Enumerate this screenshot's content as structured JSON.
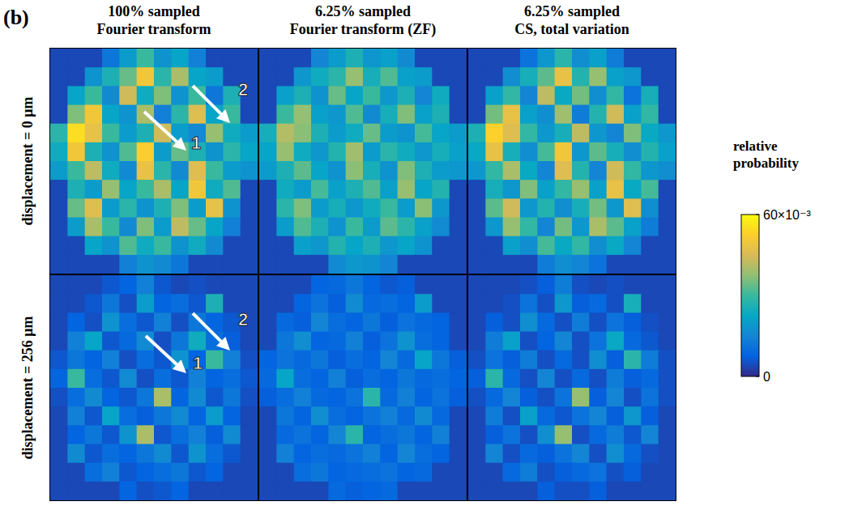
{
  "chart_data": {
    "type": "heatmap",
    "panel_label": "(b)",
    "tick_labels": false,
    "columns": [
      {
        "title": [
          "100% sampled",
          "Fourier transform"
        ]
      },
      {
        "title": [
          "6.25% sampled",
          "Fourier transform (ZF)"
        ]
      },
      {
        "title": [
          "6.25% sampled",
          "CS, total variation"
        ]
      }
    ],
    "rows": [
      {
        "label": "displacement = 0 μm"
      },
      {
        "label": "displacement = 256 μm"
      }
    ],
    "annotations": [
      {
        "text": "1",
        "row": 0,
        "column": 0
      },
      {
        "text": "2",
        "row": 0,
        "column": 0
      },
      {
        "text": "1",
        "row": 1,
        "column": 0
      },
      {
        "text": "2",
        "row": 1,
        "column": 0
      }
    ],
    "colorbar": {
      "label": "relative probability",
      "range": [
        0,
        0.06
      ],
      "ticks": [
        0,
        {
          "value": 0.06,
          "label": "60×10⁻³"
        }
      ]
    },
    "cells": [
      [
        [
          [
            0.004,
            0.004,
            0.004,
            0.012,
            0.02,
            0.03,
            0.018,
            0.022,
            0.014,
            0.004,
            0.004,
            0.004
          ],
          [
            0.004,
            0.004,
            0.018,
            0.026,
            0.034,
            0.05,
            0.028,
            0.04,
            0.022,
            0.02,
            0.004,
            0.004
          ],
          [
            0.004,
            0.022,
            0.03,
            0.016,
            0.044,
            0.024,
            0.036,
            0.018,
            0.03,
            0.012,
            0.026,
            0.004
          ],
          [
            0.004,
            0.036,
            0.05,
            0.022,
            0.018,
            0.04,
            0.014,
            0.028,
            0.046,
            0.022,
            0.03,
            0.004
          ],
          [
            0.028,
            0.055,
            0.048,
            0.03,
            0.02,
            0.026,
            0.044,
            0.02,
            0.016,
            0.038,
            0.024,
            0.02
          ],
          [
            0.024,
            0.05,
            0.026,
            0.018,
            0.032,
            0.052,
            0.02,
            0.034,
            0.026,
            0.018,
            0.028,
            0.022
          ],
          [
            0.02,
            0.03,
            0.042,
            0.024,
            0.016,
            0.048,
            0.028,
            0.016,
            0.046,
            0.03,
            0.02,
            0.018
          ],
          [
            0.004,
            0.026,
            0.02,
            0.038,
            0.022,
            0.03,
            0.04,
            0.022,
            0.05,
            0.024,
            0.032,
            0.004
          ],
          [
            0.004,
            0.034,
            0.046,
            0.02,
            0.028,
            0.018,
            0.026,
            0.036,
            0.02,
            0.048,
            0.018,
            0.004
          ],
          [
            0.004,
            0.02,
            0.04,
            0.03,
            0.016,
            0.036,
            0.02,
            0.042,
            0.034,
            0.022,
            0.014,
            0.004
          ],
          [
            0.004,
            0.004,
            0.022,
            0.018,
            0.032,
            0.024,
            0.03,
            0.018,
            0.024,
            0.016,
            0.004,
            0.004
          ],
          [
            0.004,
            0.004,
            0.004,
            0.004,
            0.014,
            0.018,
            0.016,
            0.012,
            0.004,
            0.004,
            0.004,
            0.004
          ]
        ],
        [
          [
            0.004,
            0.004,
            0.004,
            0.015,
            0.02,
            0.026,
            0.019,
            0.021,
            0.016,
            0.004,
            0.004,
            0.004
          ],
          [
            0.004,
            0.004,
            0.019,
            0.024,
            0.028,
            0.038,
            0.025,
            0.032,
            0.021,
            0.02,
            0.004,
            0.004
          ],
          [
            0.004,
            0.021,
            0.026,
            0.018,
            0.034,
            0.022,
            0.03,
            0.019,
            0.026,
            0.015,
            0.024,
            0.004
          ],
          [
            0.004,
            0.03,
            0.038,
            0.021,
            0.019,
            0.032,
            0.016,
            0.025,
            0.036,
            0.021,
            0.026,
            0.004
          ],
          [
            0.025,
            0.041,
            0.037,
            0.026,
            0.02,
            0.024,
            0.034,
            0.02,
            0.018,
            0.031,
            0.022,
            0.02
          ],
          [
            0.022,
            0.038,
            0.024,
            0.019,
            0.027,
            0.039,
            0.02,
            0.028,
            0.024,
            0.019,
            0.025,
            0.021
          ],
          [
            0.02,
            0.026,
            0.033,
            0.022,
            0.018,
            0.037,
            0.025,
            0.018,
            0.036,
            0.026,
            0.02,
            0.019
          ],
          [
            0.004,
            0.024,
            0.02,
            0.031,
            0.021,
            0.026,
            0.032,
            0.021,
            0.038,
            0.022,
            0.027,
            0.004
          ],
          [
            0.004,
            0.028,
            0.036,
            0.02,
            0.025,
            0.019,
            0.024,
            0.03,
            0.02,
            0.037,
            0.019,
            0.004
          ],
          [
            0.004,
            0.02,
            0.032,
            0.026,
            0.018,
            0.03,
            0.02,
            0.033,
            0.028,
            0.021,
            0.016,
            0.004
          ],
          [
            0.004,
            0.004,
            0.021,
            0.019,
            0.027,
            0.022,
            0.026,
            0.019,
            0.022,
            0.018,
            0.004,
            0.004
          ],
          [
            0.004,
            0.004,
            0.004,
            0.004,
            0.016,
            0.019,
            0.018,
            0.015,
            0.004,
            0.004,
            0.004,
            0.004
          ]
        ],
        [
          [
            0.004,
            0.004,
            0.004,
            0.011,
            0.019,
            0.028,
            0.017,
            0.021,
            0.013,
            0.004,
            0.004,
            0.004
          ],
          [
            0.004,
            0.004,
            0.017,
            0.025,
            0.033,
            0.048,
            0.027,
            0.038,
            0.021,
            0.019,
            0.004,
            0.004
          ],
          [
            0.004,
            0.021,
            0.029,
            0.015,
            0.042,
            0.023,
            0.035,
            0.017,
            0.029,
            0.011,
            0.025,
            0.004
          ],
          [
            0.004,
            0.035,
            0.048,
            0.021,
            0.017,
            0.039,
            0.013,
            0.027,
            0.044,
            0.021,
            0.029,
            0.004
          ],
          [
            0.026,
            0.053,
            0.046,
            0.029,
            0.019,
            0.025,
            0.042,
            0.019,
            0.015,
            0.036,
            0.023,
            0.019
          ],
          [
            0.023,
            0.048,
            0.025,
            0.017,
            0.031,
            0.05,
            0.019,
            0.033,
            0.025,
            0.017,
            0.027,
            0.021
          ],
          [
            0.019,
            0.029,
            0.04,
            0.023,
            0.015,
            0.046,
            0.027,
            0.015,
            0.044,
            0.029,
            0.019,
            0.017
          ],
          [
            0.004,
            0.025,
            0.019,
            0.036,
            0.021,
            0.029,
            0.038,
            0.021,
            0.048,
            0.023,
            0.031,
            0.004
          ],
          [
            0.004,
            0.033,
            0.044,
            0.019,
            0.027,
            0.017,
            0.025,
            0.035,
            0.019,
            0.046,
            0.017,
            0.004
          ],
          [
            0.004,
            0.019,
            0.038,
            0.029,
            0.015,
            0.035,
            0.019,
            0.04,
            0.033,
            0.021,
            0.013,
            0.004
          ],
          [
            0.004,
            0.004,
            0.021,
            0.017,
            0.031,
            0.023,
            0.029,
            0.017,
            0.023,
            0.015,
            0.004,
            0.004
          ],
          [
            0.004,
            0.004,
            0.004,
            0.004,
            0.013,
            0.017,
            0.015,
            0.011,
            0.004,
            0.004,
            0.004,
            0.004
          ]
        ]
      ],
      [
        [
          [
            0.004,
            0.004,
            0.004,
            0.006,
            0.008,
            0.014,
            0.006,
            0.004,
            0.005,
            0.004,
            0.004,
            0.004
          ],
          [
            0.004,
            0.004,
            0.006,
            0.012,
            0.005,
            0.02,
            0.008,
            0.01,
            0.006,
            0.026,
            0.004,
            0.004
          ],
          [
            0.004,
            0.008,
            0.005,
            0.018,
            0.01,
            0.006,
            0.014,
            0.005,
            0.012,
            0.008,
            0.006,
            0.004
          ],
          [
            0.004,
            0.014,
            0.022,
            0.006,
            0.009,
            0.016,
            0.005,
            0.012,
            0.024,
            0.01,
            0.007,
            0.004
          ],
          [
            0.006,
            0.012,
            0.008,
            0.014,
            0.005,
            0.01,
            0.006,
            0.018,
            0.008,
            0.03,
            0.014,
            0.005
          ],
          [
            0.008,
            0.03,
            0.01,
            0.006,
            0.016,
            0.005,
            0.01,
            0.006,
            0.014,
            0.008,
            0.01,
            0.006
          ],
          [
            0.005,
            0.01,
            0.016,
            0.008,
            0.006,
            0.012,
            0.04,
            0.008,
            0.016,
            0.006,
            0.012,
            0.005
          ],
          [
            0.004,
            0.014,
            0.006,
            0.022,
            0.01,
            0.007,
            0.012,
            0.016,
            0.008,
            0.02,
            0.008,
            0.004
          ],
          [
            0.004,
            0.008,
            0.012,
            0.006,
            0.018,
            0.04,
            0.006,
            0.01,
            0.014,
            0.007,
            0.016,
            0.004
          ],
          [
            0.004,
            0.016,
            0.006,
            0.01,
            0.008,
            0.012,
            0.016,
            0.006,
            0.018,
            0.01,
            0.006,
            0.004
          ],
          [
            0.004,
            0.004,
            0.01,
            0.014,
            0.006,
            0.008,
            0.01,
            0.012,
            0.006,
            0.008,
            0.004,
            0.004
          ],
          [
            0.004,
            0.004,
            0.004,
            0.004,
            0.008,
            0.005,
            0.006,
            0.008,
            0.004,
            0.004,
            0.004,
            0.004
          ]
        ],
        [
          [
            0.004,
            0.004,
            0.004,
            0.008,
            0.009,
            0.012,
            0.008,
            0.006,
            0.007,
            0.004,
            0.004,
            0.004
          ],
          [
            0.004,
            0.004,
            0.008,
            0.011,
            0.007,
            0.016,
            0.009,
            0.01,
            0.008,
            0.02,
            0.004,
            0.004
          ],
          [
            0.004,
            0.009,
            0.007,
            0.015,
            0.01,
            0.008,
            0.012,
            0.007,
            0.011,
            0.009,
            0.008,
            0.004
          ],
          [
            0.004,
            0.012,
            0.017,
            0.008,
            0.009,
            0.014,
            0.007,
            0.011,
            0.018,
            0.01,
            0.008,
            0.004
          ],
          [
            0.008,
            0.011,
            0.009,
            0.012,
            0.007,
            0.01,
            0.008,
            0.015,
            0.009,
            0.022,
            0.012,
            0.007
          ],
          [
            0.009,
            0.022,
            0.01,
            0.008,
            0.014,
            0.007,
            0.01,
            0.008,
            0.012,
            0.009,
            0.01,
            0.008
          ],
          [
            0.007,
            0.01,
            0.014,
            0.009,
            0.008,
            0.011,
            0.028,
            0.009,
            0.014,
            0.008,
            0.011,
            0.007
          ],
          [
            0.004,
            0.012,
            0.008,
            0.017,
            0.01,
            0.008,
            0.011,
            0.014,
            0.009,
            0.016,
            0.009,
            0.004
          ],
          [
            0.004,
            0.009,
            0.011,
            0.008,
            0.015,
            0.028,
            0.008,
            0.01,
            0.012,
            0.008,
            0.014,
            0.004
          ],
          [
            0.004,
            0.014,
            0.008,
            0.01,
            0.009,
            0.011,
            0.014,
            0.008,
            0.015,
            0.01,
            0.008,
            0.004
          ],
          [
            0.004,
            0.004,
            0.01,
            0.012,
            0.008,
            0.009,
            0.01,
            0.011,
            0.008,
            0.009,
            0.004,
            0.004
          ],
          [
            0.004,
            0.004,
            0.004,
            0.004,
            0.009,
            0.007,
            0.008,
            0.009,
            0.004,
            0.004,
            0.004,
            0.004
          ]
        ],
        [
          [
            0.004,
            0.004,
            0.004,
            0.005,
            0.007,
            0.013,
            0.005,
            0.004,
            0.005,
            0.004,
            0.004,
            0.004
          ],
          [
            0.004,
            0.004,
            0.005,
            0.011,
            0.005,
            0.019,
            0.007,
            0.009,
            0.005,
            0.025,
            0.004,
            0.004
          ],
          [
            0.004,
            0.007,
            0.005,
            0.017,
            0.009,
            0.005,
            0.013,
            0.005,
            0.011,
            0.007,
            0.005,
            0.004
          ],
          [
            0.004,
            0.013,
            0.021,
            0.005,
            0.008,
            0.015,
            0.005,
            0.011,
            0.023,
            0.009,
            0.006,
            0.004
          ],
          [
            0.005,
            0.011,
            0.007,
            0.013,
            0.005,
            0.009,
            0.005,
            0.017,
            0.007,
            0.028,
            0.013,
            0.005
          ],
          [
            0.007,
            0.028,
            0.009,
            0.005,
            0.015,
            0.005,
            0.009,
            0.005,
            0.013,
            0.007,
            0.009,
            0.005
          ],
          [
            0.005,
            0.009,
            0.015,
            0.007,
            0.005,
            0.011,
            0.038,
            0.007,
            0.015,
            0.005,
            0.011,
            0.005
          ],
          [
            0.004,
            0.013,
            0.005,
            0.021,
            0.009,
            0.006,
            0.011,
            0.015,
            0.007,
            0.019,
            0.007,
            0.004
          ],
          [
            0.004,
            0.007,
            0.011,
            0.005,
            0.017,
            0.038,
            0.005,
            0.009,
            0.013,
            0.006,
            0.015,
            0.004
          ],
          [
            0.004,
            0.015,
            0.005,
            0.009,
            0.007,
            0.011,
            0.015,
            0.005,
            0.017,
            0.009,
            0.005,
            0.004
          ],
          [
            0.004,
            0.004,
            0.009,
            0.013,
            0.005,
            0.007,
            0.009,
            0.011,
            0.005,
            0.007,
            0.004,
            0.004
          ],
          [
            0.004,
            0.004,
            0.004,
            0.004,
            0.007,
            0.005,
            0.005,
            0.007,
            0.004,
            0.004,
            0.004,
            0.004
          ]
        ]
      ]
    ]
  }
}
